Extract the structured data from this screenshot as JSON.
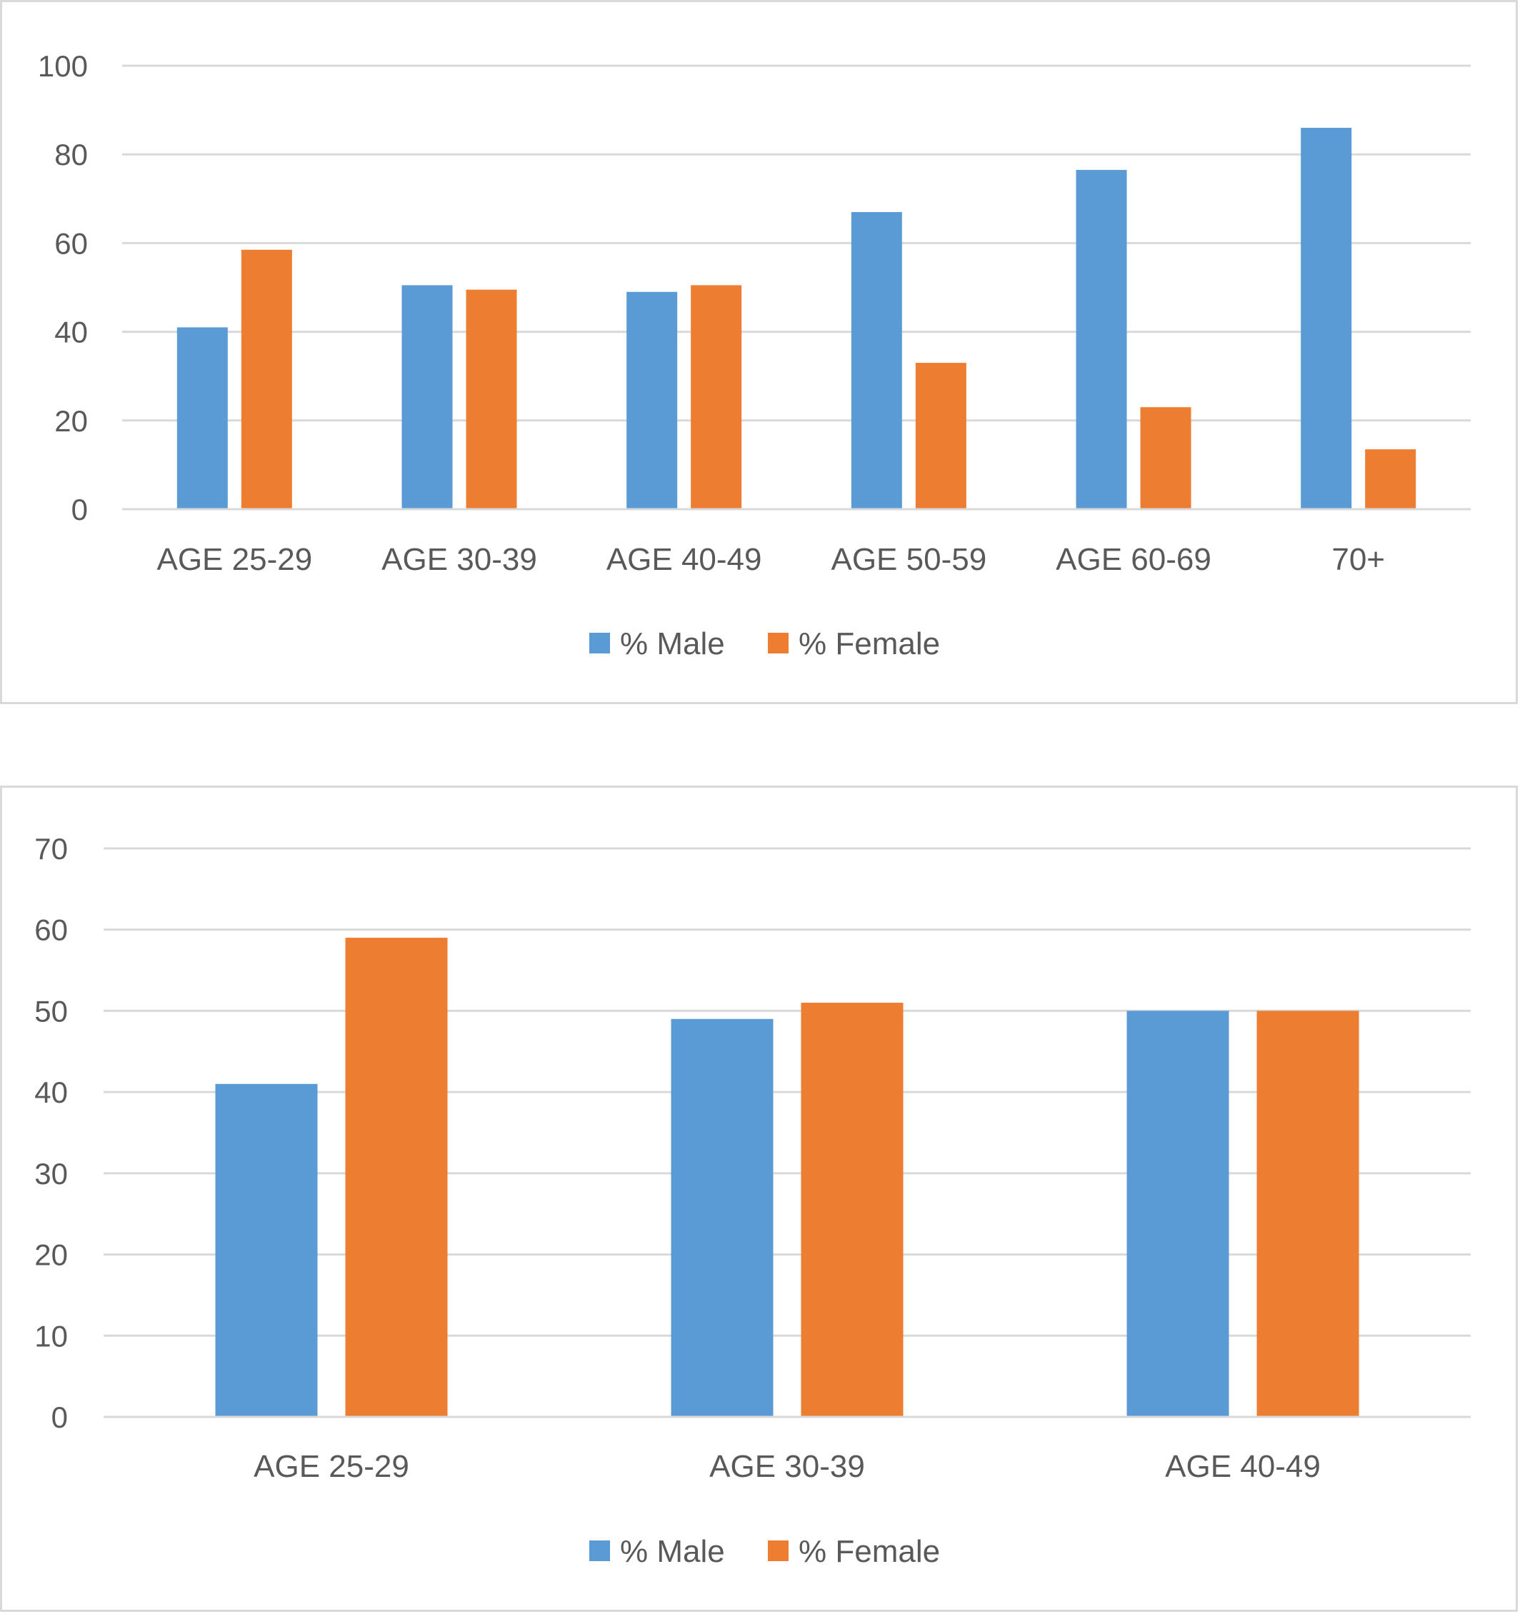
{
  "colors": {
    "male": "#5b9bd5",
    "female": "#ed7d31",
    "grid": "#d9d9d9",
    "text": "#595959"
  },
  "chart_data": [
    {
      "type": "bar",
      "title": "",
      "xlabel": "",
      "ylabel": "",
      "categories": [
        "AGE 25-29",
        "AGE 30-39",
        "AGE 40-49",
        "AGE 50-59",
        "AGE 60-69",
        "70+"
      ],
      "series": [
        {
          "name": "% Male",
          "values": [
            41,
            50.5,
            49,
            67,
            76.5,
            86
          ]
        },
        {
          "name": "% Female",
          "values": [
            58.5,
            49.5,
            50.5,
            33,
            23,
            13.5
          ]
        }
      ],
      "ylim": [
        0,
        100
      ],
      "yticks": [
        0,
        20,
        40,
        60,
        80,
        100
      ],
      "grid": true,
      "legend": "bottom-center"
    },
    {
      "type": "bar",
      "title": "",
      "xlabel": "",
      "ylabel": "",
      "categories": [
        "AGE 25-29",
        "AGE 30-39",
        "AGE 40-49"
      ],
      "series": [
        {
          "name": "% Male",
          "values": [
            41,
            49,
            50
          ]
        },
        {
          "name": "% Female",
          "values": [
            59,
            51,
            50
          ]
        }
      ],
      "ylim": [
        0,
        70
      ],
      "yticks": [
        0,
        10,
        20,
        30,
        40,
        50,
        60,
        70
      ],
      "grid": true,
      "legend": "bottom-center"
    }
  ]
}
